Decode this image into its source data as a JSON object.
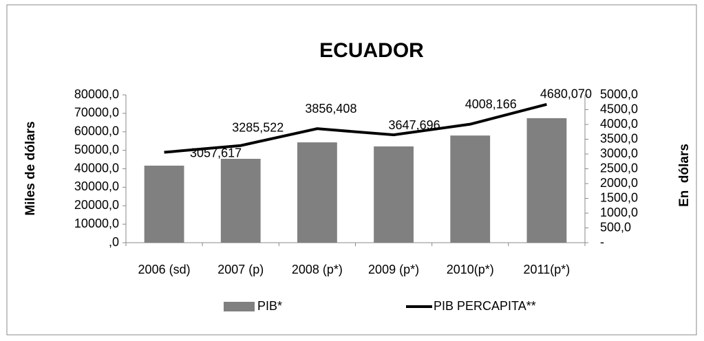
{
  "chart_data": {
    "type": "bar_line",
    "title": "ECUADOR",
    "y_label": "Miles de dólars",
    "y2_label": "En  dólars",
    "categories": [
      "2006 (sd)",
      "2007 (p)",
      "2008 (p*)",
      "2009 (p*)",
      "2010(p*)",
      "2011(p*)"
    ],
    "series": [
      {
        "name": "PIB*",
        "color": "#808080",
        "values": [
          41700,
          45400,
          54300,
          52100,
          58000,
          67400
        ]
      },
      {
        "name": "PIB PERCAPITA**",
        "color": "#000000",
        "axis": "y2",
        "values": [
          3057.617,
          3285.522,
          3856.408,
          3647.696,
          4008.166,
          4680.07
        ],
        "value_labels": [
          "3057,617",
          "3285,522",
          "3856,408",
          "3647,696",
          "4008,166",
          "4680,070"
        ]
      }
    ],
    "ylim": [
      0,
      80000
    ],
    "yticks": [
      {
        "value": 0,
        "label": ",0"
      },
      {
        "value": 10000,
        "label": "10000,0"
      },
      {
        "value": 20000,
        "label": "20000,0"
      },
      {
        "value": 30000,
        "label": "30000,0"
      },
      {
        "value": 40000,
        "label": "40000,0"
      },
      {
        "value": 50000,
        "label": "50000,0"
      },
      {
        "value": 60000,
        "label": "60000,0"
      },
      {
        "value": 70000,
        "label": "70000,0"
      },
      {
        "value": 80000,
        "label": "80000,0"
      }
    ],
    "y2lim": [
      0,
      5000
    ],
    "y2ticks": [
      {
        "value": 0,
        "label": "-"
      },
      {
        "value": 500,
        "label": "500,0"
      },
      {
        "value": 1000,
        "label": "1000,0"
      },
      {
        "value": 1500,
        "label": "1500,0"
      },
      {
        "value": 2000,
        "label": "2000,0"
      },
      {
        "value": 2500,
        "label": "2500,0"
      },
      {
        "value": 3000,
        "label": "3000,0"
      },
      {
        "value": 3500,
        "label": "3500,0"
      },
      {
        "value": 4000,
        "label": "4000,0"
      },
      {
        "value": 4500,
        "label": "4500,0"
      },
      {
        "value": 5000,
        "label": "5000,0"
      }
    ],
    "legend": "bottom"
  }
}
